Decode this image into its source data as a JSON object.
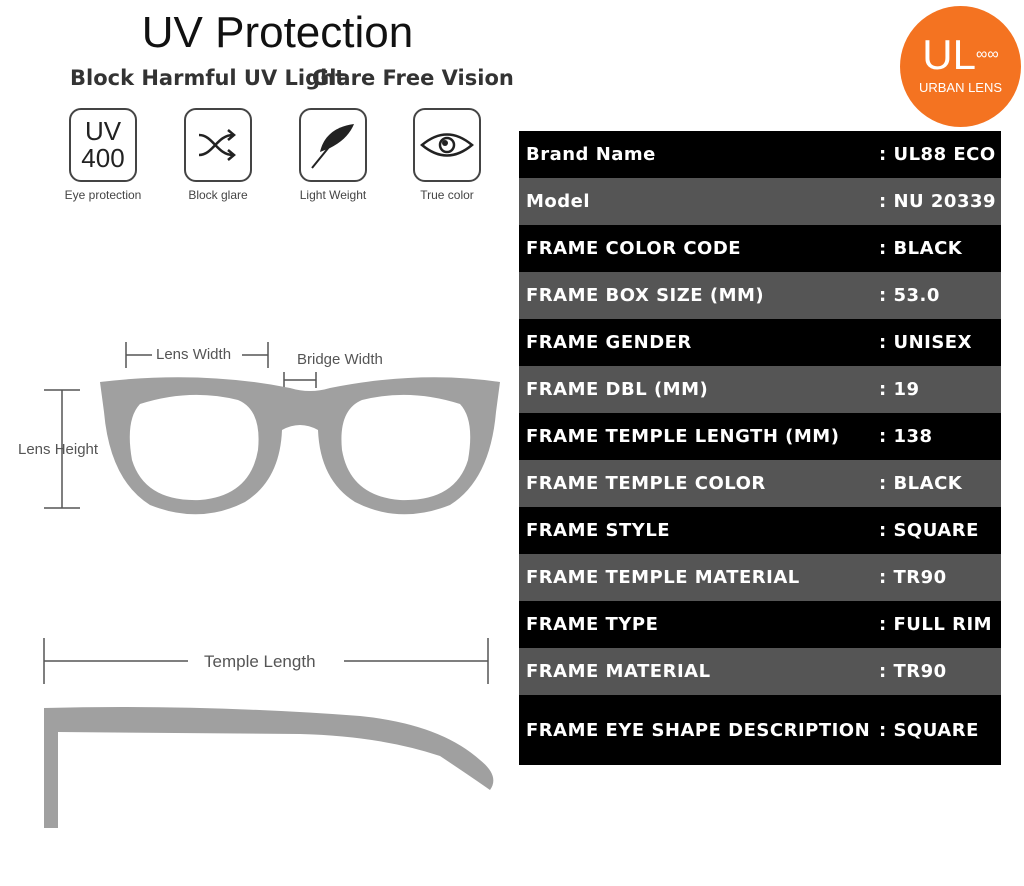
{
  "header": {
    "title": "UV Protection",
    "subtitle_left": "Block Harmful UV Light",
    "subtitle_right": "Glare Free Vision"
  },
  "features": [
    {
      "icon": "uv400-icon",
      "icon_text": [
        "UV",
        "400"
      ],
      "label": "Eye protection"
    },
    {
      "icon": "shuffle-arrows-icon",
      "label": "Block glare"
    },
    {
      "icon": "feather-icon",
      "label": "Light Weight"
    },
    {
      "icon": "eye-icon",
      "label": "True color"
    }
  ],
  "dimensions": {
    "lens_width": "Lens Width",
    "bridge_width": "Bridge Width",
    "lens_height": "Lens Height",
    "temple_length": "Temple Length"
  },
  "logo": {
    "mark": "UL",
    "symbol": "∞∞",
    "name": "URBAN LENS",
    "color": "#f47321"
  },
  "specs": [
    {
      "key": "Brand Name",
      "value": ": UL88 ECO"
    },
    {
      "key": "Model",
      "value": ": NU 20339"
    },
    {
      "key": "FRAME COLOR CODE",
      "value": ": BLACK"
    },
    {
      "key": "FRAME BOX SIZE (MM)",
      "value": ": 53.0"
    },
    {
      "key": "FRAME GENDER",
      "value": ": UNISEX"
    },
    {
      "key": "FRAME DBL (MM)",
      "value": ": 19"
    },
    {
      "key": "FRAME TEMPLE LENGTH (MM)",
      "value": ": 138"
    },
    {
      "key": "FRAME TEMPLE COLOR",
      "value": ": BLACK"
    },
    {
      "key": "FRAME STYLE",
      "value": ": SQUARE"
    },
    {
      "key": "FRAME TEMPLE MATERIAL",
      "value": ": TR90"
    },
    {
      "key": "FRAME TYPE",
      "value": ": FULL RIM"
    },
    {
      "key": "FRAME MATERIAL",
      "value": ": TR90"
    },
    {
      "key": "FRAME EYE SHAPE DESCRIPTION",
      "value": ": SQUARE"
    }
  ]
}
